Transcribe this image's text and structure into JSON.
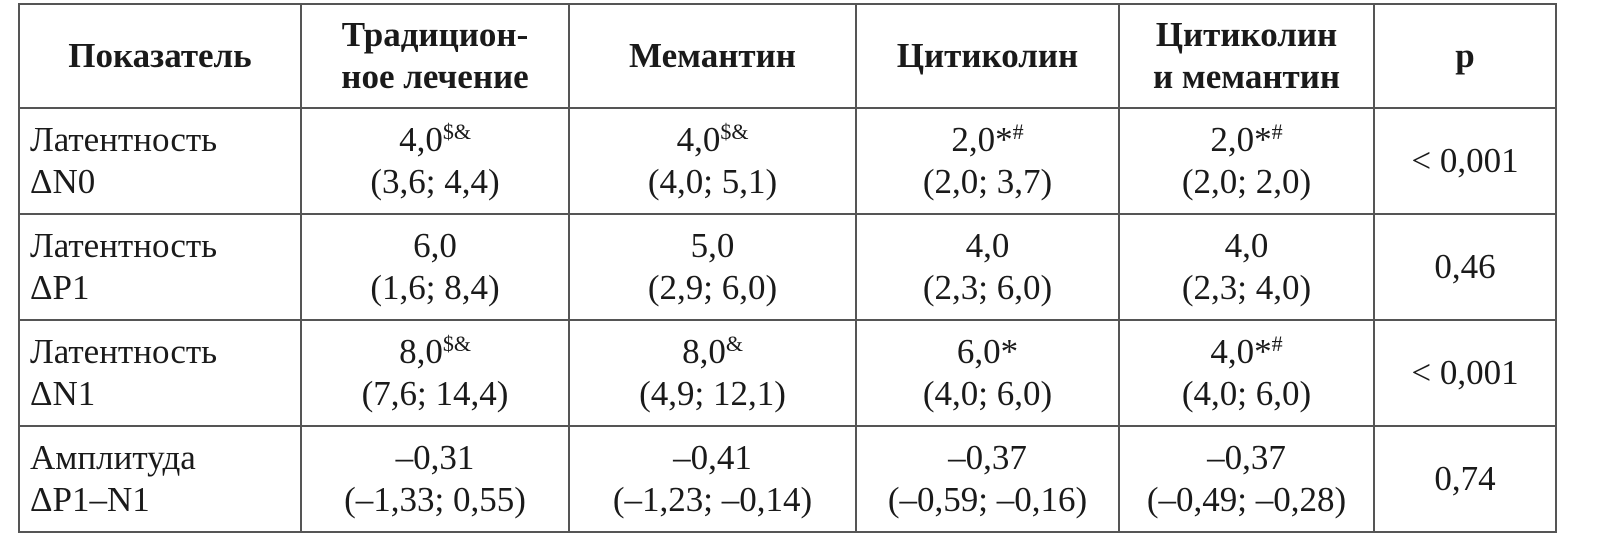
{
  "table": {
    "header": [
      [
        "Показатель"
      ],
      [
        "Традицион-",
        "ное лечение"
      ],
      [
        "Мемантин"
      ],
      [
        "Цитиколин"
      ],
      [
        "Цитиколин",
        "и мемантин"
      ],
      [
        "p"
      ]
    ],
    "rows": [
      [
        [
          "Латентность",
          "ΔN0"
        ],
        {
          "value": "4,0",
          "sup": "$&",
          "range": "(3,6; 4,4)"
        },
        {
          "value": "4,0",
          "sup": "$&",
          "range": "(4,0; 5,1)"
        },
        {
          "value": "2,0*",
          "sup": "#",
          "range": "(2,0; 3,7)"
        },
        {
          "value": "2,0*",
          "sup": "#",
          "range": "(2,0; 2,0)"
        },
        "< 0,001"
      ],
      [
        [
          "Латентность",
          "ΔP1"
        ],
        {
          "value": "6,0",
          "range": "(1,6; 8,4)"
        },
        {
          "value": "5,0",
          "range": "(2,9; 6,0)"
        },
        {
          "value": "4,0",
          "range": "(2,3; 6,0)"
        },
        {
          "value": "4,0",
          "range": "(2,3; 4,0)"
        },
        "0,46"
      ],
      [
        [
          "Латентность",
          "ΔN1"
        ],
        {
          "value": "8,0",
          "sup": "$&",
          "range": "(7,6; 14,4)"
        },
        {
          "value": "8,0",
          "sup": "&",
          "range": "(4,9; 12,1)"
        },
        {
          "value": "6,0*",
          "range": "(4,0; 6,0)"
        },
        {
          "value": "4,0*",
          "sup": "#",
          "range": "(4,0; 6,0)"
        },
        "< 0,001"
      ],
      [
        [
          "Амплитуда",
          "ΔP1–N1"
        ],
        {
          "value": "–0,31",
          "range": "(–1,33; 0,55)"
        },
        {
          "value": "–0,41",
          "range": "(–1,23; –0,14)"
        },
        {
          "value": "–0,37",
          "range": "(–0,59; –0,16)"
        },
        {
          "value": "–0,37",
          "range": "(–0,49; –0,28)"
        },
        "0,74"
      ]
    ]
  }
}
